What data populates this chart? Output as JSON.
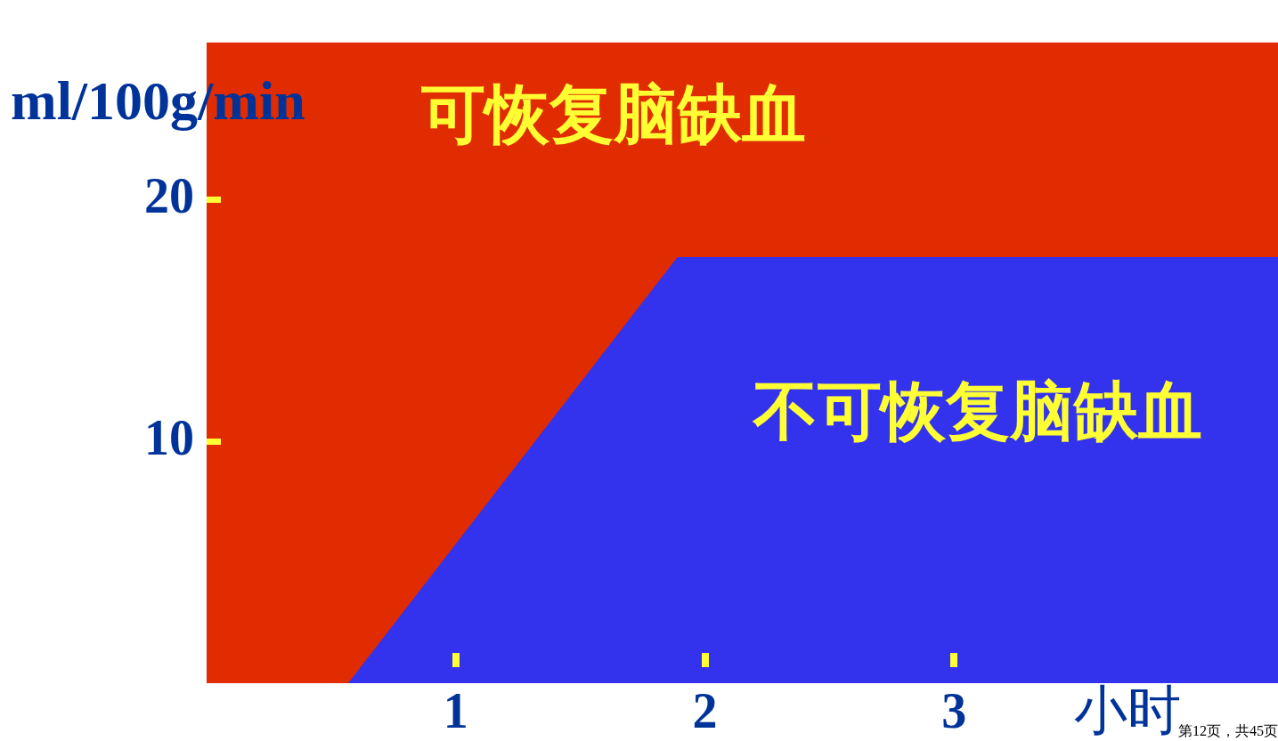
{
  "chart_data": {
    "type": "area",
    "xlabel": "小时",
    "ylabel": "ml/100g/min",
    "series": [
      {
        "name": "不可恢复脑缺血",
        "color": "#3333ee",
        "x": [
          0.57,
          1.89,
          4.3
        ],
        "values": [
          0,
          17.6,
          17.6
        ]
      }
    ],
    "bands": [
      {
        "axis": "y",
        "from": 0,
        "to": 26.5,
        "label": "可恢复脑缺血",
        "color": "#e02c00"
      }
    ],
    "xlim": [
      0,
      4.3
    ],
    "xticks": [
      1,
      2,
      3
    ],
    "ylim": [
      0,
      26.5
    ],
    "yticks": [
      10,
      20
    ],
    "legend": false,
    "annotations": [
      "第12页，共45页"
    ]
  }
}
